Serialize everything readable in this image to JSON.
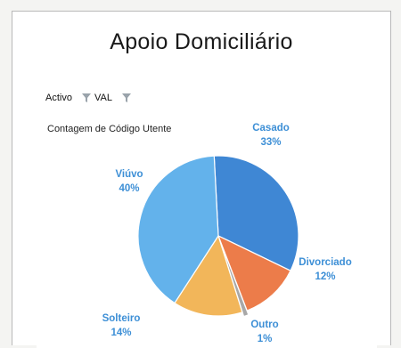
{
  "filters": {
    "field": "Activo",
    "value_button": "VAL"
  },
  "chart_data": {
    "type": "pie",
    "title": "Apoio Domiciliário",
    "measure": "Contagem de Código Utente",
    "categories": [
      "Casado",
      "Divorciado",
      "Outro",
      "Solteiro",
      "Viúvo"
    ],
    "values": [
      33,
      12,
      1,
      14,
      40
    ],
    "percent_labels": [
      "33%",
      "12%",
      "1%",
      "14%",
      "40%"
    ],
    "colors": [
      "#3f87d4",
      "#ec7c4a",
      "#a8a8a8",
      "#f2b65a",
      "#63b2eb"
    ],
    "label_color": "#3d8fd6",
    "legend": "none (data labels)"
  }
}
